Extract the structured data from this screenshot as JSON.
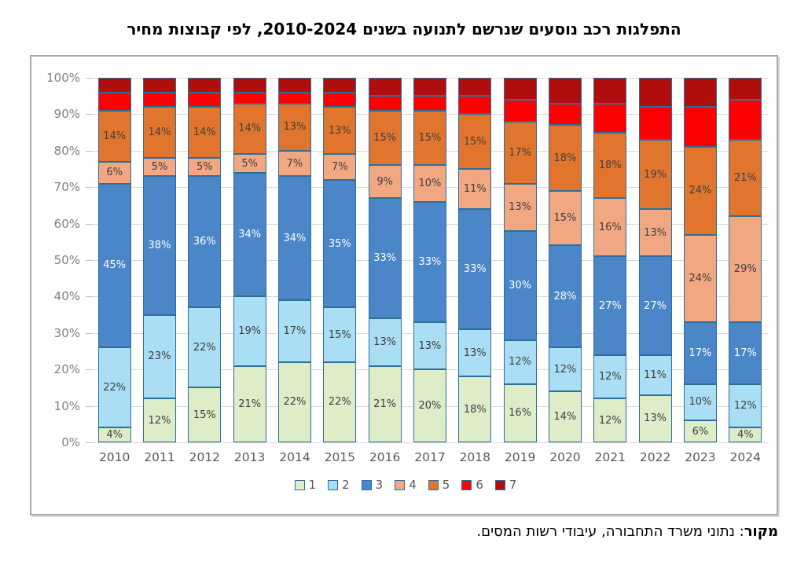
{
  "source": {
    "prefix": "מקור",
    "text": ": נתוני משרד התחבורה, עיבודי רשות המסים."
  },
  "chart_data": {
    "type": "bar",
    "subtype": "stacked-100-percent",
    "title": "התפלגות רכב נוסעים שנרשם לתנועה בשנים 2010-2024, לפי קבוצות מחיר",
    "categories": [
      "2010",
      "2011",
      "2012",
      "2013",
      "2014",
      "2015",
      "2016",
      "2017",
      "2018",
      "2019",
      "2020",
      "2021",
      "2022",
      "2023",
      "2024"
    ],
    "series": [
      {
        "name": "1",
        "color": "#dcedc8",
        "label_color": "#3f3f3f",
        "show_labels": true,
        "values": [
          4,
          12,
          15,
          21,
          22,
          22,
          21,
          20,
          18,
          16,
          14,
          12,
          13,
          6,
          4
        ]
      },
      {
        "name": "2",
        "color": "#a9def5",
        "label_color": "#3f3f3f",
        "show_labels": true,
        "values": [
          22,
          23,
          22,
          19,
          17,
          15,
          13,
          13,
          13,
          12,
          12,
          12,
          11,
          10,
          12
        ]
      },
      {
        "name": "3",
        "color": "#4a86c8",
        "label_color": "#ffffff",
        "show_labels": true,
        "values": [
          45,
          38,
          36,
          34,
          34,
          35,
          33,
          33,
          33,
          30,
          28,
          27,
          27,
          17,
          17
        ]
      },
      {
        "name": "4",
        "color": "#f1a781",
        "label_color": "#3f3f3f",
        "show_labels": true,
        "values": [
          6,
          5,
          5,
          5,
          7,
          7,
          9,
          10,
          11,
          13,
          15,
          16,
          13,
          24,
          29
        ]
      },
      {
        "name": "5",
        "color": "#e2752d",
        "label_color": "#3f3f3f",
        "show_labels": true,
        "values": [
          14,
          14,
          14,
          14,
          13,
          13,
          15,
          15,
          15,
          17,
          18,
          18,
          19,
          24,
          21
        ]
      },
      {
        "name": "6",
        "color": "#fb0101",
        "label_color": "#3f3f3f",
        "show_labels": false,
        "values": [
          5,
          4,
          4,
          3,
          3,
          4,
          4,
          4,
          5,
          6,
          6,
          8,
          9,
          11,
          11
        ]
      },
      {
        "name": "7",
        "color": "#b00d0d",
        "label_color": "#ffffff",
        "show_labels": false,
        "values": [
          4,
          4,
          4,
          4,
          4,
          4,
          5,
          5,
          5,
          6,
          7,
          7,
          8,
          8,
          6
        ]
      }
    ],
    "value_suffix": "%",
    "yticks": [
      "100%",
      "90%",
      "80%",
      "70%",
      "60%",
      "50%",
      "40%",
      "30%",
      "20%",
      "10%",
      "0%"
    ],
    "ylim": [
      0,
      100
    ],
    "grid": true,
    "legend_position": "bottom",
    "segment_border_color": "#2d6f9b"
  }
}
